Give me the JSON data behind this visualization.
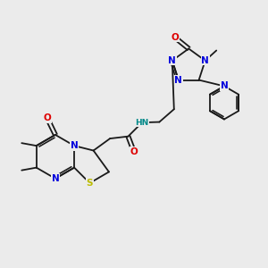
{
  "background_color": "#ebebeb",
  "bond_color": "#1a1a1a",
  "atom_colors": {
    "N": "#0000dd",
    "O": "#dd0000",
    "S": "#bbbb00",
    "H": "#008888",
    "C": "#1a1a1a"
  },
  "figsize": [
    3.0,
    3.0
  ],
  "dpi": 100
}
